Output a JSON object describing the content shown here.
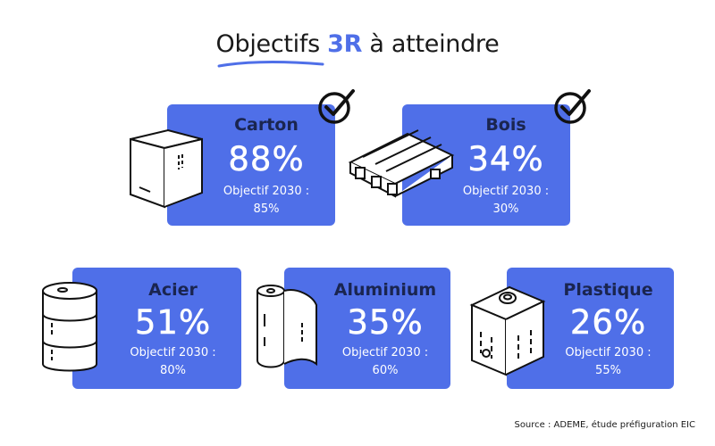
{
  "title": {
    "prefix": "Objectifs ",
    "accent": "3R",
    "suffix": " à atteindre"
  },
  "colors": {
    "card_bg": "#4f6fe8",
    "accent": "#4f6fe8",
    "label_dark": "#1a2550"
  },
  "cards": [
    {
      "name": "Carton",
      "percent": "88%",
      "objective_label": "Objectif 2030 :",
      "objective_value": "85%",
      "achieved": true,
      "icon": "cardboard-box-icon"
    },
    {
      "name": "Bois",
      "percent": "34%",
      "objective_label": "Objectif 2030 :",
      "objective_value": "30%",
      "achieved": true,
      "icon": "wooden-pallet-icon"
    },
    {
      "name": "Acier",
      "percent": "51%",
      "objective_label": "Objectif 2030 :",
      "objective_value": "80%",
      "achieved": false,
      "icon": "steel-drum-icon"
    },
    {
      "name": "Aluminium",
      "percent": "35%",
      "objective_label": "Objectif 2030 :",
      "objective_value": "60%",
      "achieved": false,
      "icon": "aluminium-roll-icon"
    },
    {
      "name": "Plastique",
      "percent": "26%",
      "objective_label": "Objectif 2030 :",
      "objective_value": "55%",
      "achieved": false,
      "icon": "plastic-container-icon"
    }
  ],
  "source": "Source : ADEME, étude préfiguration EIC"
}
